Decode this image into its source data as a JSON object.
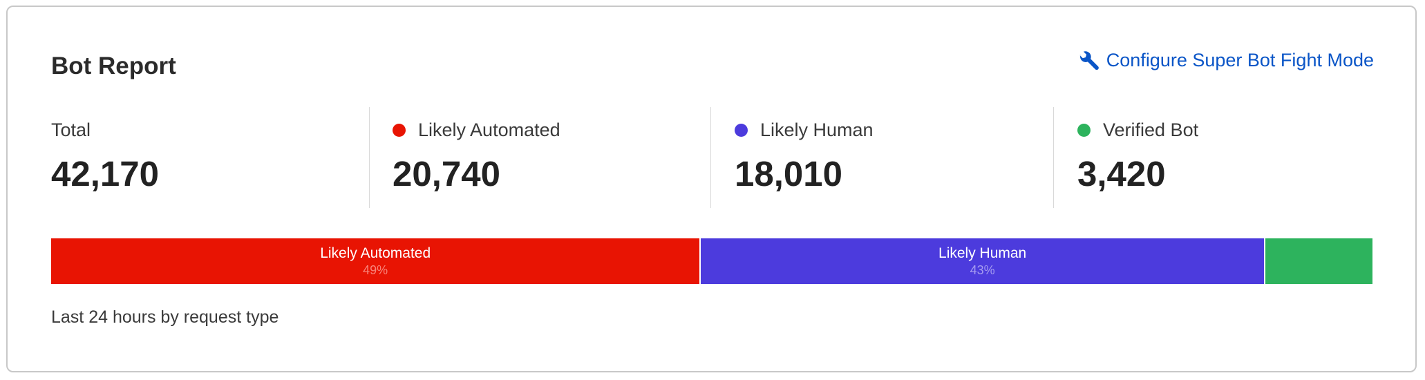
{
  "title": "Bot Report",
  "configure_link": {
    "label": "Configure Super Bot Fight Mode",
    "icon": "wrench-icon",
    "color": "#0a55c7"
  },
  "stats": [
    {
      "label": "Total",
      "value": "42,170"
    },
    {
      "label": "Likely Automated",
      "value": "20,740",
      "color": "#e81403"
    },
    {
      "label": "Likely Human",
      "value": "18,010",
      "color": "#4c3bdd"
    },
    {
      "label": "Verified Bot",
      "value": "3,420",
      "color": "#2db35d"
    }
  ],
  "chart_data": {
    "type": "bar",
    "orientation": "horizontal-stacked",
    "categories": [
      "Likely Automated",
      "Likely Human",
      "Verified Bot"
    ],
    "values": [
      20740,
      18010,
      3420
    ],
    "segment_labels": [
      {
        "label": "Likely Automated",
        "percent": "49%"
      },
      {
        "label": "Likely Human",
        "percent": "43%"
      },
      {
        "label": "",
        "percent": ""
      }
    ],
    "colors": [
      "#e81403",
      "#4c3bdd",
      "#2db35d"
    ]
  },
  "footer": "Last 24 hours by request type"
}
